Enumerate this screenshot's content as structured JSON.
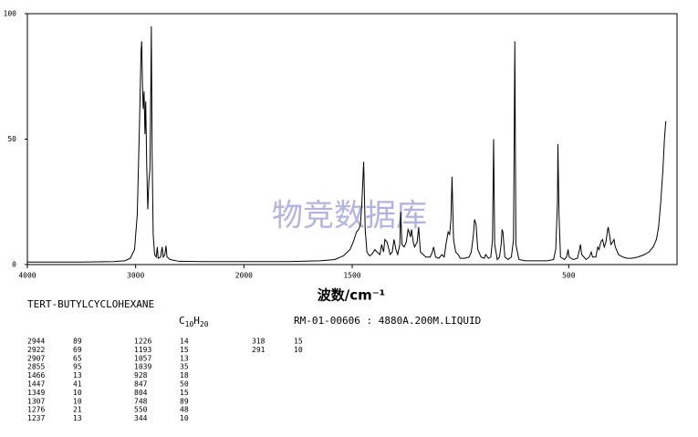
{
  "chart_data": {
    "type": "line",
    "x_label": "波数/cm⁻¹",
    "watermark": "物竞数据库",
    "xlim": [
      4000,
      0
    ],
    "x_scale_change": 2000,
    "xticks": [
      4000,
      3000,
      2000,
      1500,
      500
    ],
    "ylim": [
      0,
      100
    ],
    "yticks": [
      0,
      50,
      100
    ],
    "color": "#000000",
    "x": [
      4000,
      3500,
      3200,
      3100,
      3050,
      3010,
      2985,
      2965,
      2950,
      2944,
      2937,
      2930,
      2922,
      2914,
      2907,
      2898,
      2888,
      2878,
      2868,
      2860,
      2855,
      2848,
      2838,
      2825,
      2810,
      2800,
      2792,
      2770,
      2755,
      2745,
      2730,
      2720,
      2710,
      2680,
      2600,
      2400,
      2200,
      2000,
      1800,
      1650,
      1580,
      1540,
      1510,
      1495,
      1480,
      1470,
      1462,
      1455,
      1447,
      1440,
      1432,
      1420,
      1410,
      1395,
      1385,
      1372,
      1364,
      1355,
      1349,
      1339,
      1325,
      1315,
      1307,
      1298,
      1290,
      1280,
      1276,
      1270,
      1260,
      1250,
      1242,
      1237,
      1231,
      1226,
      1218,
      1212,
      1200,
      1193,
      1185,
      1160,
      1140,
      1130,
      1124,
      1115,
      1100,
      1086,
      1075,
      1067,
      1057,
      1050,
      1044,
      1039,
      1032,
      1022,
      1011,
      1000,
      980,
      960,
      950,
      940,
      935,
      928,
      920,
      905,
      890,
      884,
      870,
      860,
      852,
      847,
      842,
      830,
      820,
      812,
      808,
      804,
      795,
      780,
      765,
      755,
      749,
      744,
      730,
      700,
      650,
      600,
      570,
      560,
      552,
      550,
      545,
      538,
      520,
      510,
      503,
      498,
      480,
      460,
      450,
      446,
      440,
      420,
      405,
      396,
      390,
      375,
      366,
      360,
      352,
      344,
      336,
      328,
      322,
      318,
      312,
      305,
      297,
      291,
      285,
      270,
      250,
      230,
      210,
      180,
      150,
      130,
      110,
      95,
      85,
      75,
      65,
      58,
      52,
      50
    ],
    "values": [
      1,
      1,
      1.2,
      1.5,
      2.5,
      6,
      20,
      55,
      85,
      89,
      72,
      62,
      69,
      52,
      65,
      40,
      22,
      33,
      38,
      70,
      95,
      45,
      12,
      4,
      3,
      7,
      2.5,
      3,
      7,
      3,
      4,
      7.5,
      3,
      2,
      1.3,
      1.2,
      1.2,
      1.2,
      1.2,
      1.5,
      2,
      3.5,
      6,
      9,
      13,
      14,
      16,
      25,
      41,
      14,
      5,
      3.5,
      4,
      6,
      5,
      4,
      8,
      5,
      10,
      9,
      4,
      5,
      10,
      6,
      4,
      8,
      21,
      8,
      7,
      9,
      14,
      13,
      11,
      14,
      9,
      7,
      9,
      15,
      5,
      3,
      3,
      5,
      7,
      3,
      2.5,
      4,
      3,
      8,
      13,
      12,
      18,
      35,
      10,
      5,
      4,
      2.5,
      2.5,
      3,
      5,
      12,
      18,
      16,
      6,
      3,
      2.5,
      4,
      2.5,
      3,
      10,
      50,
      8,
      2,
      3,
      8,
      14,
      13,
      3,
      2,
      3,
      10,
      89,
      8,
      2,
      1.5,
      1.5,
      1.5,
      2,
      6,
      25,
      48,
      20,
      3,
      2,
      3,
      6,
      3,
      2,
      2.5,
      6,
      8,
      4,
      2,
      3,
      5,
      3,
      3,
      7,
      6,
      9,
      10,
      7,
      9,
      13,
      15,
      12,
      8,
      9,
      10,
      7,
      4,
      3,
      2.5,
      2.5,
      3,
      4,
      5,
      7,
      10,
      15,
      25,
      38,
      50,
      57,
      57
    ]
  },
  "compound": "TERT-BUTYLCYCLOHEXANE",
  "formula": [
    "C",
    "10",
    "H",
    "20"
  ],
  "reference": "RM-01-00606 : 4880A.200M.LIQUID",
  "peaks": [
    [
      2944,
      89
    ],
    [
      2922,
      69
    ],
    [
      2907,
      65
    ],
    [
      2855,
      95
    ],
    [
      1466,
      13
    ],
    [
      1447,
      41
    ],
    [
      1349,
      10
    ],
    [
      1307,
      10
    ],
    [
      1276,
      21
    ],
    [
      1237,
      13
    ],
    [
      1226,
      14
    ],
    [
      1193,
      15
    ],
    [
      1057,
      13
    ],
    [
      1039,
      35
    ],
    [
      928,
      18
    ],
    [
      847,
      50
    ],
    [
      804,
      15
    ],
    [
      748,
      89
    ],
    [
      550,
      48
    ],
    [
      344,
      10
    ],
    [
      318,
      15
    ],
    [
      291,
      10
    ]
  ]
}
